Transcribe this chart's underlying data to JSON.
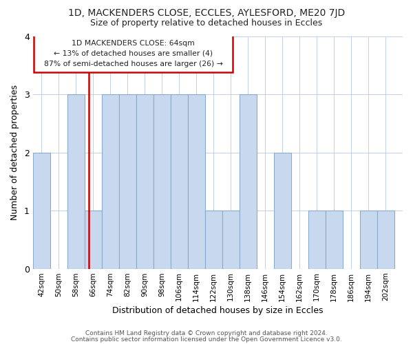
{
  "title": "1D, MACKENDERS CLOSE, ECCLES, AYLESFORD, ME20 7JD",
  "subtitle": "Size of property relative to detached houses in Eccles",
  "xlabel": "Distribution of detached houses by size in Eccles",
  "ylabel": "Number of detached properties",
  "bar_color": "#c8d8ee",
  "bar_edge_color": "#88aacc",
  "categories": [
    "42sqm",
    "50sqm",
    "58sqm",
    "66sqm",
    "74sqm",
    "82sqm",
    "90sqm",
    "98sqm",
    "106sqm",
    "114sqm",
    "122sqm",
    "130sqm",
    "138sqm",
    "146sqm",
    "154sqm",
    "162sqm",
    "170sqm",
    "178sqm",
    "186sqm",
    "194sqm",
    "202sqm"
  ],
  "values": [
    2,
    0,
    3,
    1,
    3,
    3,
    3,
    3,
    3,
    3,
    1,
    1,
    3,
    0,
    2,
    0,
    1,
    1,
    0,
    1,
    1
  ],
  "annotation_text_line1": "1D MACKENDERS CLOSE: 64sqm",
  "annotation_text_line2": "← 13% of detached houses are smaller (4)",
  "annotation_text_line3": "87% of semi-detached houses are larger (26) →",
  "red_line_x": 64,
  "property_line_color": "#cc0000",
  "footer_line1": "Contains HM Land Registry data © Crown copyright and database right 2024.",
  "footer_line2": "Contains public sector information licensed under the Open Government Licence v3.0.",
  "ylim": [
    0,
    4
  ],
  "bin_width": 8
}
